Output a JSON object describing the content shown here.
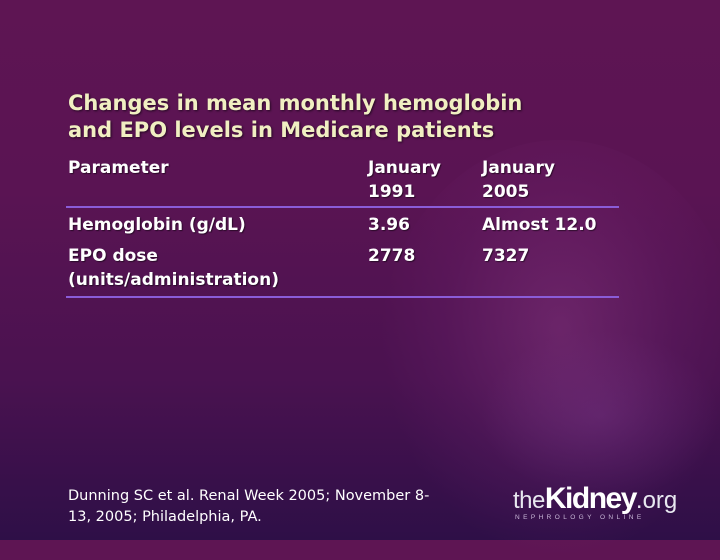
{
  "title": {
    "line1": "Changes in mean monthly hemoglobin",
    "line2": "and EPO levels in Medicare patients"
  },
  "table": {
    "headers": {
      "param": "Parameter",
      "jan1991_line1": "January",
      "jan1991_line2": "1991",
      "jan2005_line1": "January",
      "jan2005_line2": "2005"
    },
    "rows": [
      {
        "param_line1": "Hemoglobin (g/dL)",
        "param_line2": "",
        "v1991": "3.96",
        "v2005": "Almost 12.0"
      },
      {
        "param_line1": "EPO dose",
        "param_line2": "(units/administration)",
        "v1991": "2778",
        "v2005": "7327"
      }
    ]
  },
  "footnote": {
    "line1": "Dunning SC et al. Renal Week 2005; November 8-",
    "line2": "13, 2005; Philadelphia, PA."
  },
  "logo": {
    "the": "the",
    "kidney": "Kidney",
    "org": ".org",
    "sub": "NEPHROLOGY ONLINE"
  },
  "colors": {
    "title": "#f1efc2",
    "rule": "#8a5cd8",
    "background_top": "#5e1553",
    "background_bottom": "#2e0f47"
  }
}
